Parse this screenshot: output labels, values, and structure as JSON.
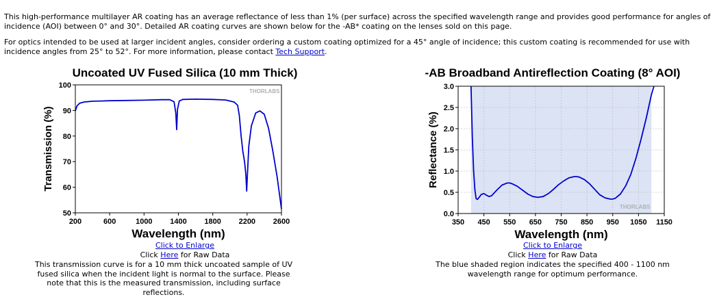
{
  "intro": {
    "p1": "This high-performance multilayer AR coating has an average reflectance of less than 1% (per surface) across the specified wavelength range and provides good performance for angles of incidence (AOI) between 0° and 30°. Detailed AR coating curves are shown below for the -AB* coating on the lenses sold on this page.",
    "p2_before": "For optics intended to be used at larger incident angles, consider ordering a custom coating optimized for a 45° angle of incidence; this custom coating is recommended for use with incidence angles from 25° to 52°. For more information, please contact ",
    "p2_link": "Tech Support",
    "p2_after": "."
  },
  "figures": [
    {
      "title": "Uncoated UV Fused Silica (10 mm Thick)",
      "enlarge_link": "Click to Enlarge",
      "raw_before": "Click ",
      "raw_link": "Here",
      "raw_after": " for Raw Data",
      "caption": "This transmission curve is for a 10 mm thick uncoated sample of UV fused silica when the incident light is normal to the surface. Please note that this is the measured transmission, including surface reflections.",
      "watermark": "THORLABS"
    },
    {
      "title": "-AB Broadband Antireflection Coating (8° AOI)",
      "enlarge_link": "Click to Enlarge",
      "raw_before": "Click ",
      "raw_link": "Here",
      "raw_after": " for Raw Data",
      "caption": "The blue shaded region indicates the specified 400 - 1100 nm wavelength range for optimum performance.",
      "watermark": "THORLABS"
    }
  ],
  "chart_data": [
    {
      "type": "line",
      "title": "Uncoated UV Fused Silica (10 mm Thick)",
      "xlabel": "Wavelength (nm)",
      "ylabel": "Transmission (%)",
      "xlim": [
        200,
        2600
      ],
      "ylim": [
        50,
        100
      ],
      "xticks": [
        "200",
        "600",
        "1000",
        "1400",
        "1800",
        "2200",
        "2600"
      ],
      "yticks": [
        "50",
        "60",
        "70",
        "80",
        "90",
        "100"
      ],
      "grid": false,
      "line_color": "#0000cc",
      "series": [
        {
          "x": [
            200,
            220,
            250,
            300,
            400,
            500,
            600,
            800,
            1000,
            1200,
            1300,
            1350,
            1370,
            1380,
            1390,
            1410,
            1450,
            1600,
            1800,
            1950,
            2050,
            2090,
            2110,
            2130,
            2150,
            2170,
            2185,
            2195,
            2205,
            2220,
            2250,
            2300,
            2350,
            2400,
            2450,
            2500,
            2550,
            2600
          ],
          "y": [
            89.8,
            91.8,
            92.8,
            93.3,
            93.6,
            93.7,
            93.8,
            93.9,
            94.0,
            94.2,
            94.2,
            93.4,
            89.0,
            82.5,
            90.5,
            93.7,
            94.3,
            94.4,
            94.3,
            94.1,
            93.3,
            92.0,
            88.0,
            80.0,
            74.0,
            70.0,
            65.0,
            58.5,
            66.0,
            76.0,
            84.0,
            89.0,
            89.8,
            88.5,
            83.0,
            74.0,
            64.0,
            51.5
          ]
        }
      ]
    },
    {
      "type": "line",
      "title": "-AB Broadband Antireflection Coating (8° AOI)",
      "xlabel": "Wavelength (nm)",
      "ylabel": "Reflectance (%)",
      "xlim": [
        350,
        1150
      ],
      "ylim": [
        0.0,
        3.0
      ],
      "xticks": [
        "350",
        "450",
        "550",
        "650",
        "750",
        "850",
        "950",
        "1050",
        "1150"
      ],
      "yticks": [
        "0.0",
        "0.5",
        "1.0",
        "1.5",
        "2.0",
        "2.5",
        "3.0"
      ],
      "grid": true,
      "shaded_range": [
        400,
        1100
      ],
      "shade_color": "#dbe3f5",
      "line_color": "#0000cc",
      "series": [
        {
          "x": [
            400,
            402,
            405,
            410,
            415,
            420,
            425,
            430,
            440,
            450,
            460,
            470,
            480,
            500,
            520,
            540,
            550,
            560,
            580,
            600,
            620,
            640,
            660,
            680,
            700,
            720,
            740,
            760,
            780,
            800,
            810,
            820,
            840,
            860,
            880,
            900,
            920,
            940,
            950,
            960,
            980,
            1000,
            1020,
            1040,
            1060,
            1080,
            1100,
            1110
          ],
          "y": [
            3.0,
            2.5,
            1.8,
            1.0,
            0.55,
            0.35,
            0.33,
            0.37,
            0.45,
            0.47,
            0.43,
            0.4,
            0.42,
            0.55,
            0.67,
            0.72,
            0.72,
            0.7,
            0.64,
            0.55,
            0.46,
            0.4,
            0.38,
            0.4,
            0.47,
            0.57,
            0.68,
            0.77,
            0.84,
            0.87,
            0.87,
            0.86,
            0.8,
            0.7,
            0.57,
            0.44,
            0.37,
            0.34,
            0.34,
            0.36,
            0.46,
            0.65,
            0.92,
            1.3,
            1.75,
            2.25,
            2.8,
            3.05
          ]
        }
      ]
    }
  ]
}
